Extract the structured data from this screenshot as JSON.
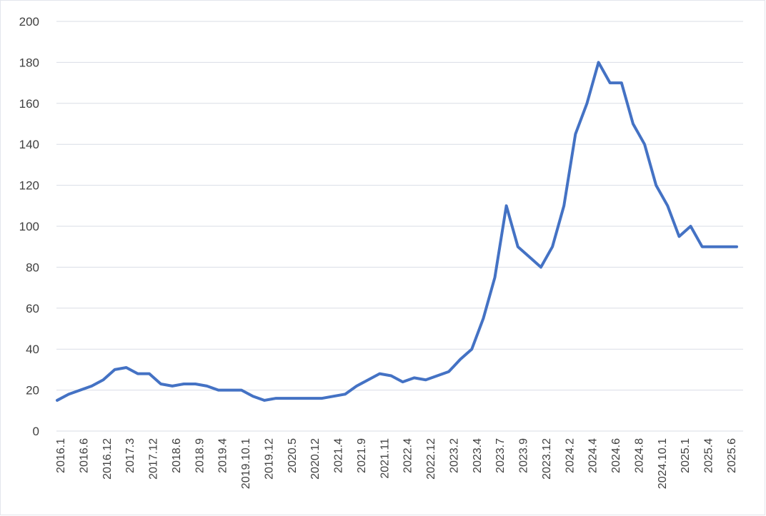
{
  "chart_data": {
    "type": "line",
    "title": "",
    "xlabel": "",
    "ylabel": "",
    "ylim": [
      0,
      200
    ],
    "yticks": [
      0,
      20,
      40,
      60,
      80,
      100,
      120,
      140,
      160,
      180,
      200
    ],
    "grid": true,
    "legend": "none",
    "line_color": "#4472c4",
    "x_tick_labels": [
      "2016.1",
      "2016.6",
      "2016.12",
      "2017.3",
      "2017.12",
      "2018.6",
      "2018.9",
      "2019.4",
      "2019.10.1",
      "2019.12",
      "2020.5",
      "2020.12",
      "2021.4",
      "2021.9",
      "2021.11",
      "2022.4",
      "2022.12",
      "2023.2",
      "2023.4",
      "2023.7",
      "2023.9",
      "2023.12",
      "2024.2",
      "2024.4",
      "2024.6",
      "2024.8",
      "2024.10.1",
      "2025.1",
      "2025.4",
      "2025.6"
    ],
    "series": [
      {
        "values": [
          15,
          18,
          20,
          22,
          25,
          30,
          31,
          28,
          28,
          23,
          22,
          23,
          23,
          22,
          20,
          20,
          20,
          17,
          15,
          16,
          16,
          16,
          16,
          16,
          17,
          18,
          22,
          25,
          28,
          27,
          24,
          26,
          25,
          27,
          29,
          35,
          40,
          55,
          75,
          110,
          90,
          85,
          80,
          90,
          110,
          145,
          160,
          180,
          170,
          170,
          150,
          140,
          120,
          110,
          95,
          100,
          90,
          90,
          90,
          90
        ]
      }
    ]
  }
}
